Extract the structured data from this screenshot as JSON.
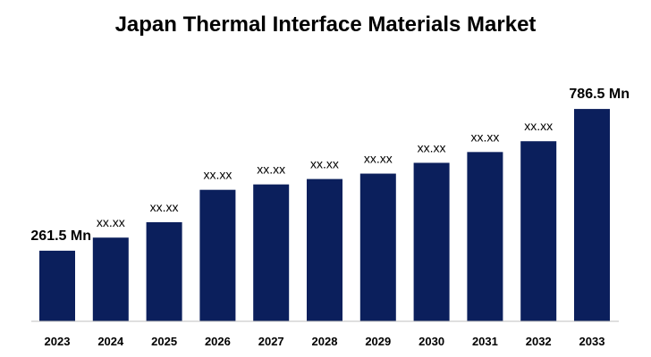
{
  "chart_data": {
    "type": "bar",
    "title": "Japan Thermal Interface Materials Market",
    "categories": [
      "2023",
      "2024",
      "2025",
      "2026",
      "2027",
      "2028",
      "2029",
      "2030",
      "2031",
      "2032",
      "2033"
    ],
    "values": [
      261.5,
      310,
      367,
      487,
      507,
      527,
      547,
      587,
      627,
      667,
      786.5
    ],
    "data_labels": [
      "261.5 Mn",
      "xx.xx",
      "xx.xx",
      "xx.xx",
      "xx.xx",
      "xx.xx",
      "xx.xx",
      "xx.xx",
      "xx.xx",
      "xx.xx",
      "786.5 Mn"
    ],
    "ylim": [
      0,
      1000
    ],
    "grid": false,
    "legend": "none",
    "colors": {
      "bar": "#0b1f5c",
      "axis": "#bfbfbf",
      "text": "#000000"
    }
  }
}
